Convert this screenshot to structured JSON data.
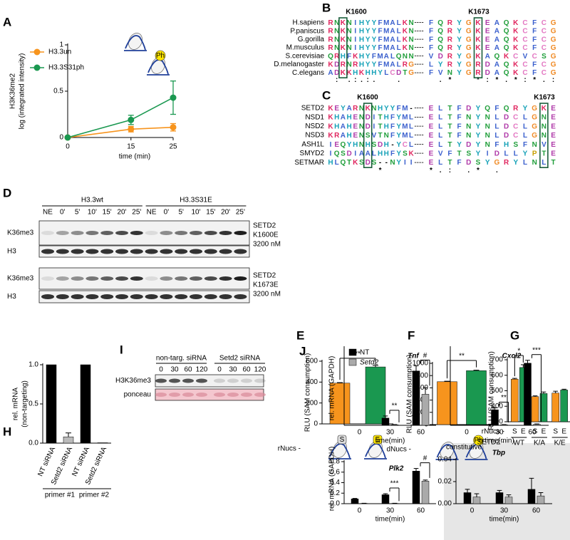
{
  "panel_labels": [
    "A",
    "B",
    "C",
    "D",
    "E",
    "F",
    "G",
    "H",
    "I",
    "J"
  ],
  "chart_data": [
    {
      "type": "line",
      "ylabel": [
        "H3K36me2",
        "log (integrated intensity)"
      ],
      "xlabel": "time (min)",
      "x": [
        0,
        15,
        25
      ],
      "xlim": [
        0,
        25
      ],
      "xticks": [
        0,
        15,
        25
      ],
      "ylim": [
        0,
        1
      ],
      "yticks": [
        0,
        0.5,
        1
      ],
      "icon_label": "Ph",
      "series": [
        {
          "name": "H3.3un",
          "color": "#f7941d",
          "values": [
            0,
            0.09,
            0.11
          ],
          "errors": [
            0,
            0.03,
            0.04
          ]
        },
        {
          "name": "H3.3S31ph",
          "color": "#1a9850",
          "values": [
            0,
            0.19,
            0.43
          ],
          "errors": [
            0,
            0.05,
            0.18
          ]
        }
      ]
    },
    {
      "type": "bar",
      "ylabel": "RLU (SAM consumption)",
      "xlabel": "rNucs -",
      "categories": [
        "S",
        "E"
      ],
      "values": [
        390,
        545
      ],
      "errors": [
        5,
        15
      ],
      "colors": [
        "#f7941d",
        "#1a9850"
      ],
      "ylim": [
        0,
        600
      ],
      "yticks": [
        0,
        200,
        400,
        600
      ],
      "significance": "**"
    },
    {
      "type": "bar",
      "ylabel": "RLU (SAM consumption)",
      "xlabel": "dNucs -",
      "categories": [
        null,
        "Ph"
      ],
      "values": [
        700,
        880
      ],
      "errors": [
        8,
        8
      ],
      "colors": [
        "#f7941d",
        "#1a9850"
      ],
      "ylim": [
        0,
        1000
      ],
      "yticks": [
        0,
        200,
        400,
        600,
        800,
        1000
      ],
      "significance": "**"
    },
    {
      "type": "bar",
      "ylabel": "RLU (SAM consumption)",
      "xlabel": "rNucs -",
      "x2label": "SETD2 -",
      "categories": [
        "WT",
        "K/A",
        "K/E"
      ],
      "ylim": [
        300,
        700
      ],
      "yticks": [
        300,
        400,
        500,
        600,
        700
      ],
      "significance": [
        "*",
        null,
        null
      ],
      "series": [
        {
          "name": "S",
          "color": "#f7941d",
          "values": [
            575,
            462,
            485
          ],
          "errors": [
            5,
            5,
            12
          ]
        },
        {
          "name": "E",
          "color": "#1a9850",
          "values": [
            650,
            482,
            505
          ],
          "errors": [
            18,
            10,
            5
          ]
        }
      ]
    },
    {
      "type": "bar",
      "ylabel": [
        "rel. mRNA",
        "(non-targeting)"
      ],
      "categories": [
        "NT siRNA",
        "Setd2 siRNA",
        "NT siRNA",
        "Setd2 siRNA"
      ],
      "groups": [
        "primer #1",
        "primer #2"
      ],
      "values": [
        1,
        0.08,
        1,
        0.005
      ],
      "errors": [
        0,
        0.05,
        0,
        0
      ],
      "colors": [
        "#000000",
        "#bbbbbb",
        "#000000",
        "#bbbbbb"
      ],
      "ylim": [
        0,
        1
      ],
      "yticks": [
        {
          "value": 0,
          "label": "0.0"
        },
        0.5,
        {
          "value": 1,
          "label": "1.0"
        }
      ]
    },
    {
      "type": "bar",
      "title": "Tnf",
      "ylabel": "rel. mRNA (GAPDH)",
      "xlabel": "time(min)",
      "legend": true,
      "categories": [
        "0",
        "30",
        "60"
      ],
      "ylim": [
        0,
        300
      ],
      "significance": [
        null,
        "**",
        "#"
      ],
      "series": [
        {
          "name": "NT",
          "color": "#000000",
          "values": [
            0,
            28,
            210
          ],
          "errors": [
            0,
            8,
            20
          ]
        },
        {
          "name": "Setd2",
          "color": "#aaaaaa",
          "values": [
            0,
            2,
            120
          ],
          "errors": [
            0,
            1,
            25
          ]
        }
      ]
    },
    {
      "type": "bar",
      "title": "Cxcl2",
      "xlabel": "time(min)",
      "categories": [
        "0",
        "30",
        "60"
      ],
      "ylim": [
        0,
        400
      ],
      "significance": [
        null,
        "**",
        "***"
      ],
      "series": [
        {
          "name": "NT",
          "color": "#000000",
          "values": [
            0,
            80,
            320
          ],
          "errors": [
            0,
            10,
            15
          ]
        },
        {
          "name": "Setd2",
          "color": "#aaaaaa",
          "values": [
            0,
            3,
            5
          ],
          "errors": [
            0,
            1,
            2
          ]
        }
      ]
    },
    {
      "type": "bar",
      "title": "Plk2",
      "ylabel": "rel. mRNA (GAPDH)",
      "xlabel": "time(min)",
      "categories": [
        "0",
        "30",
        "60"
      ],
      "ylim": [
        0,
        0.8
      ],
      "yticks": [
        {
          "value": 0,
          "label": "0.0"
        },
        0.2,
        0.4,
        0.6,
        0.8
      ],
      "significance": [
        null,
        "***",
        "#"
      ],
      "series": [
        {
          "name": "NT",
          "color": "#000000",
          "values": [
            0.09,
            0.17,
            0.62
          ],
          "errors": [
            0.01,
            0.02,
            0.05
          ]
        },
        {
          "name": "Setd2",
          "color": "#aaaaaa",
          "values": [
            0.005,
            0.005,
            0.43
          ],
          "errors": [
            0.003,
            0.003,
            0.02
          ]
        }
      ]
    },
    {
      "type": "bar",
      "title": "Tbp",
      "note": "constitutive",
      "xlabel": "time(min)",
      "categories": [
        "0",
        "30",
        "60"
      ],
      "ylim": [
        0,
        0.04
      ],
      "yticks": [
        {
          "value": 0,
          "label": "0.00"
        },
        0.02,
        0.04
      ],
      "series": [
        {
          "name": "NT",
          "color": "#000000",
          "values": [
            0.01,
            0.01,
            0.013
          ],
          "errors": [
            0.003,
            0.002,
            0.01
          ]
        },
        {
          "name": "Setd2",
          "color": "#aaaaaa",
          "values": [
            0.006,
            0.006,
            0.007
          ],
          "errors": [
            0.003,
            0.002,
            0.003
          ]
        }
      ]
    }
  ],
  "alignment_b": {
    "marks": [
      "K1600",
      "K1673"
    ],
    "gap": "----",
    "rows": [
      {
        "name": "H.sapiens",
        "left": "RNKNIHYYFMALKN",
        "right": "FQRYGKEAQKCFCG"
      },
      {
        "name": "P.paniscus",
        "left": "RNKNIHYYFMALKN",
        "right": "FQRYGKEAQKCFCG"
      },
      {
        "name": "G.gorilla",
        "left": "RNKNIHYYFMALKN",
        "right": "FQRYGKEAQKCFCG"
      },
      {
        "name": "M.musculus",
        "left": "RNKNIHYYFMALKN",
        "right": "FQRYGKEAQKCFCG"
      },
      {
        "name": "S.cerevisiae",
        "left": "QRHFKHYFMALQNN",
        "right": "VDRYGKAQKCVCSG"
      },
      {
        "name": "D.melanogaster",
        "left": "KDRNRHYYFMALRG",
        "right": "LYRYGRDAQKCFCG"
      },
      {
        "name": "C.elegans",
        "left": "ADKKHKHHYLCDTG",
        "right": "FVNYGRDAQKCFCG"
      }
    ],
    "conservation": [
      " : .:.:.   .  ",
      " .*  *:*.*:*.:"
    ]
  },
  "alignment_c": {
    "marks": [
      "K1600",
      "K1673"
    ],
    "gap": "----",
    "rows": [
      {
        "name": "SETD2",
        "left": "KEYARNKNHYYFM-",
        "right": "ELTFDYQFQRYGKE"
      },
      {
        "name": "NSD1",
        "left": "KHAHENDITHFYML",
        "right": "ELTFNYNLDCLGNE"
      },
      {
        "name": "NSD2",
        "left": "KHAHENDITHFYML",
        "right": "ELTFNYNLDCLGNE"
      },
      {
        "name": "NSD3",
        "left": "KRAHENSVTNFYML",
        "right": "ELTFNYNLDCLGNE"
      },
      {
        "name": "ASH1L",
        "left": "IEQYHNHSDH-YCL",
        "right": "ELTYDYNFHSFNVE"
      },
      {
        "name": "SMYD2",
        "left": "IQSDIAALHHFYSK",
        "right": "EVFTSYIDLLYPTE"
      },
      {
        "name": "SETMAR",
        "left": "HLQTKSDS--NYII",
        "right": "ELTFDSYGRYLNLT"
      }
    ],
    "conservation": [
      "        *     ",
      "*.: .* .      "
    ]
  },
  "blot_d": {
    "groups": [
      "H3.3wt",
      "H3.3S31E"
    ],
    "lanes": [
      "NE",
      "0'",
      "5'",
      "10'",
      "15'",
      "20'",
      "25'"
    ],
    "rows": [
      "K36me3",
      "H3",
      "K36me3",
      "H3"
    ],
    "conditions": [
      [
        "SETD2",
        "K1600E",
        "3200 nM"
      ],
      [
        "SETD2",
        "K1673E",
        "3200 nM"
      ]
    ]
  },
  "blot_i": {
    "groups": [
      "non-targ. siRNA",
      "Setd2 siRNA"
    ],
    "lanes": [
      "0",
      "30",
      "60",
      "120"
    ],
    "rows": [
      "H3K36me3",
      "ponceau"
    ]
  }
}
